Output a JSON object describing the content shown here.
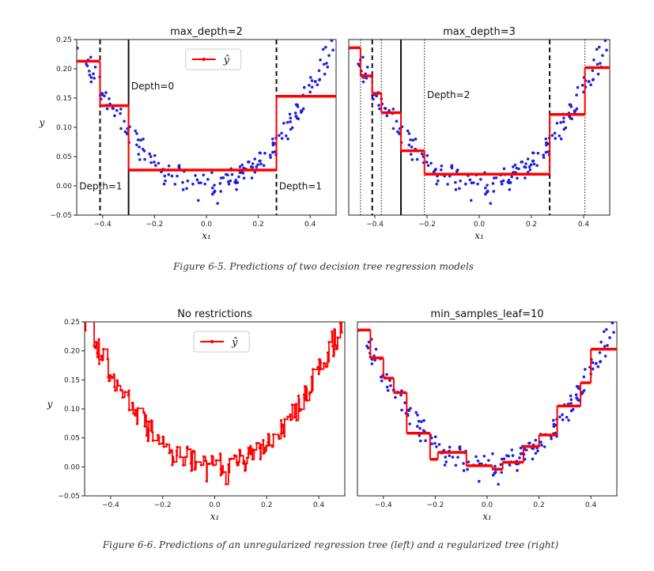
{
  "figures": [
    {
      "caption": "Figure 6-5. Predictions of two decision tree regression models",
      "y_axis_label": "y"
    },
    {
      "caption": "Figure 6-6. Predictions of an unregularized regression tree (left) and a regularized tree (right)",
      "y_axis_label": "y"
    }
  ],
  "chart_data": [
    {
      "type": "line",
      "title": "max_depth=2",
      "xlabel": "x1",
      "ylabel": "y",
      "xlim": [
        -0.5,
        0.5
      ],
      "ylim": [
        -0.05,
        0.25
      ],
      "xticks": [
        "-0.4",
        "-0.2",
        "0.0",
        "0.2",
        "0.4"
      ],
      "yticks": [
        "-0.05",
        "0.00",
        "0.05",
        "0.10",
        "0.15",
        "0.20",
        "0.25"
      ],
      "legend": {
        "label": "ŷ",
        "placement": "top-center"
      },
      "prediction_steps": [
        {
          "x0": -0.5,
          "x1": -0.41,
          "y": 0.213
        },
        {
          "x0": -0.41,
          "x1": -0.3,
          "y": 0.137
        },
        {
          "x0": -0.3,
          "x1": 0.27,
          "y": 0.027
        },
        {
          "x0": 0.27,
          "x1": 0.5,
          "y": 0.153
        }
      ],
      "vlines": [
        {
          "x": -0.3,
          "style": "solid"
        },
        {
          "x": -0.41,
          "style": "dashed"
        },
        {
          "x": 0.27,
          "style": "dashed"
        }
      ],
      "annotations": [
        {
          "text": "Depth=0",
          "x": -0.29,
          "y": 0.165
        },
        {
          "text": "Depth=1",
          "x": -0.49,
          "y": -0.006
        },
        {
          "text": "Depth=1",
          "x": 0.28,
          "y": -0.006
        }
      ],
      "scatter_points": "quadratic training data 4*(x-0.5)^2 + noise"
    },
    {
      "type": "line",
      "title": "max_depth=3",
      "xlabel": "x1",
      "ylabel": "",
      "xlim": [
        -0.5,
        0.5
      ],
      "ylim": [
        -0.05,
        0.25
      ],
      "xticks": [
        "-0.4",
        "-0.2",
        "0.0",
        "0.2",
        "0.4"
      ],
      "prediction_steps": [
        {
          "x0": -0.5,
          "x1": -0.455,
          "y": 0.236
        },
        {
          "x0": -0.455,
          "x1": -0.41,
          "y": 0.188
        },
        {
          "x0": -0.41,
          "x1": -0.375,
          "y": 0.158
        },
        {
          "x0": -0.375,
          "x1": -0.3,
          "y": 0.125
        },
        {
          "x0": -0.3,
          "x1": -0.21,
          "y": 0.06
        },
        {
          "x0": -0.21,
          "x1": 0.27,
          "y": 0.02
        },
        {
          "x0": 0.27,
          "x1": 0.405,
          "y": 0.122
        },
        {
          "x0": 0.405,
          "x1": 0.5,
          "y": 0.202
        }
      ],
      "vlines": [
        {
          "x": -0.3,
          "style": "solid"
        },
        {
          "x": -0.41,
          "style": "dashed"
        },
        {
          "x": 0.27,
          "style": "dashed"
        },
        {
          "x": -0.455,
          "style": "dotted"
        },
        {
          "x": -0.375,
          "style": "dotted"
        },
        {
          "x": -0.21,
          "style": "dotted"
        },
        {
          "x": 0.405,
          "style": "dotted"
        }
      ],
      "annotations": [
        {
          "text": "Depth=2",
          "x": -0.2,
          "y": 0.15
        }
      ]
    },
    {
      "type": "line",
      "title": "No restrictions",
      "xlabel": "x1",
      "ylabel": "y",
      "xlim": [
        -0.5,
        0.5
      ],
      "ylim": [
        -0.05,
        0.25
      ],
      "xticks": [
        "-0.4",
        "-0.2",
        "0.0",
        "0.2",
        "0.4"
      ],
      "yticks": [
        "-0.05",
        "0.00",
        "0.05",
        "0.10",
        "0.15",
        "0.20",
        "0.25"
      ],
      "legend": {
        "label": "ŷ",
        "placement": "top-center"
      },
      "prediction": "unrestricted tree (fits each training point)"
    },
    {
      "type": "line",
      "title": "min_samples_leaf=10",
      "xlabel": "x1",
      "ylabel": "",
      "xlim": [
        -0.5,
        0.5
      ],
      "ylim": [
        -0.05,
        0.25
      ],
      "xticks": [
        "-0.4",
        "-0.2",
        "0.0",
        "0.2",
        "0.4"
      ],
      "prediction_steps": [
        {
          "x0": -0.5,
          "x1": -0.45,
          "y": 0.236
        },
        {
          "x0": -0.45,
          "x1": -0.4,
          "y": 0.188
        },
        {
          "x0": -0.4,
          "x1": -0.36,
          "y": 0.153
        },
        {
          "x0": -0.36,
          "x1": -0.31,
          "y": 0.128
        },
        {
          "x0": -0.31,
          "x1": -0.22,
          "y": 0.058
        },
        {
          "x0": -0.22,
          "x1": -0.19,
          "y": 0.013
        },
        {
          "x0": -0.19,
          "x1": -0.08,
          "y": 0.025
        },
        {
          "x0": -0.08,
          "x1": 0.02,
          "y": 0.002
        },
        {
          "x0": 0.02,
          "x1": 0.06,
          "y": -0.004
        },
        {
          "x0": 0.06,
          "x1": 0.14,
          "y": 0.008
        },
        {
          "x0": 0.14,
          "x1": 0.2,
          "y": 0.035
        },
        {
          "x0": 0.2,
          "x1": 0.27,
          "y": 0.055
        },
        {
          "x0": 0.27,
          "x1": 0.36,
          "y": 0.105
        },
        {
          "x0": 0.36,
          "x1": 0.4,
          "y": 0.145
        },
        {
          "x0": 0.4,
          "x1": 0.5,
          "y": 0.203
        }
      ]
    }
  ],
  "colors": {
    "points": "#1f1fe0",
    "prediction": "#ff0000",
    "axis": "#222222"
  }
}
